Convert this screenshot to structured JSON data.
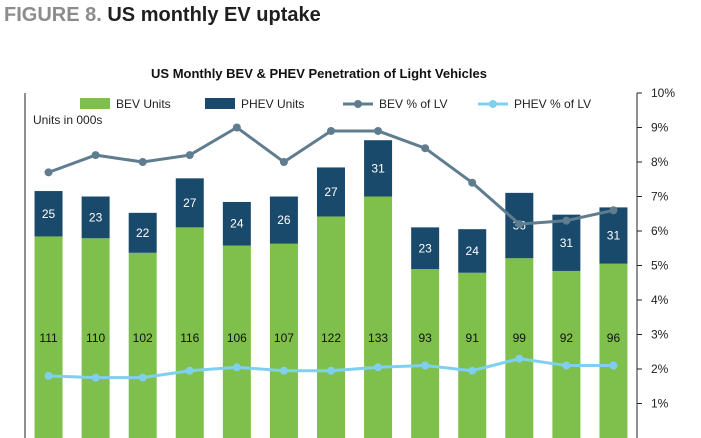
{
  "figure": {
    "label": "FIGURE 8.",
    "title": "US monthly EV uptake"
  },
  "chart_data": {
    "type": "bar",
    "title": "US Monthly BEV & PHEV Penetration of Light Vehicles",
    "units_note": "Units in 000s",
    "categories": [
      "",
      "",
      "",
      "",
      "",
      "",
      "",
      "",
      "",
      "",
      "",
      "",
      ""
    ],
    "series": [
      {
        "name": "BEV Units",
        "kind": "stacked-bar",
        "axis": "left",
        "color": "#7ec04b",
        "values": [
          111,
          110,
          102,
          116,
          106,
          107,
          122,
          133,
          93,
          91,
          99,
          92,
          96
        ]
      },
      {
        "name": "PHEV Units",
        "kind": "stacked-bar",
        "axis": "left",
        "color": "#1a4a6b",
        "values": [
          25,
          23,
          22,
          27,
          24,
          26,
          27,
          31,
          23,
          24,
          36,
          31,
          31
        ]
      },
      {
        "name": "BEV % of LV",
        "kind": "line",
        "axis": "right",
        "color": "#5f7d8f",
        "values": [
          7.7,
          8.2,
          8.0,
          8.2,
          9.0,
          8.0,
          8.9,
          8.9,
          8.4,
          7.4,
          6.2,
          6.3,
          6.6
        ]
      },
      {
        "name": "PHEV % of LV",
        "kind": "line",
        "axis": "right",
        "color": "#7fd0ee",
        "values": [
          1.8,
          1.75,
          1.75,
          1.95,
          2.05,
          1.95,
          1.95,
          2.05,
          2.1,
          1.95,
          2.3,
          2.1,
          2.1
        ]
      }
    ],
    "y_left_range": [
      0,
      190
    ],
    "y_right_range": [
      0,
      10
    ],
    "y_right_ticks": [
      "1%",
      "2%",
      "3%",
      "4%",
      "5%",
      "6%",
      "7%",
      "8%",
      "9%",
      "10%"
    ],
    "legend_position": "top"
  }
}
